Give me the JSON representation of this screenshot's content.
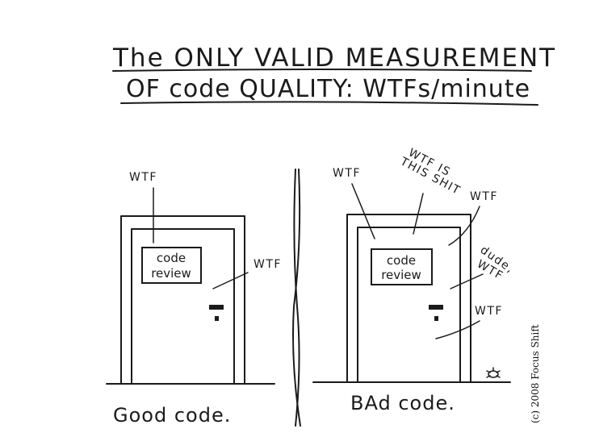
{
  "title": {
    "line1": "The ONLY VALID MEASUREMENT",
    "line2": "OF code QUALITY: WTFs/minute"
  },
  "good_panel": {
    "sign_line1": "code",
    "sign_line2": "review",
    "annotations": [
      "WTF",
      "WTF"
    ],
    "caption": "Good code."
  },
  "bad_panel": {
    "sign_line1": "code",
    "sign_line2": "review",
    "annotations": [
      "WTF",
      "WTF IS",
      "THIS SHIT",
      "WTF",
      "dude,",
      "WTF",
      "WTF"
    ],
    "caption": "BAd code."
  },
  "copyright": "(c) 2008 Focus Shift"
}
